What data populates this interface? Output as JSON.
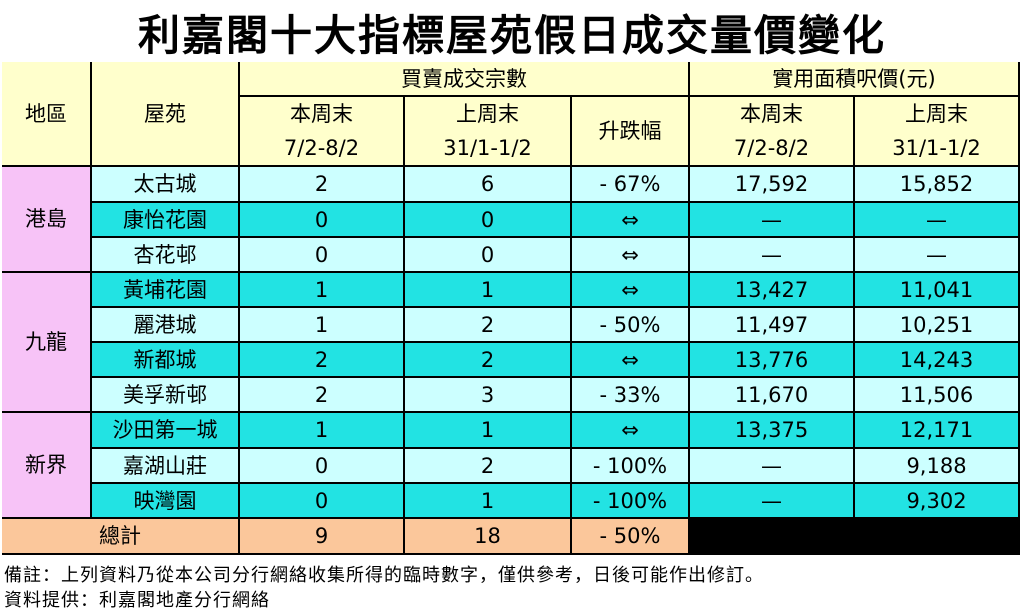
{
  "title": "利嘉閣十大指標屋苑假日成交量價變化",
  "table": {
    "header": {
      "district": "地區",
      "estate": "屋苑",
      "transactions": "買賣成交宗數",
      "price": "實用面積呎價(元)",
      "columns": [
        [
          "本周末",
          "7/2-8/2"
        ],
        [
          "上周末",
          "31/1-1/2"
        ],
        [
          "升跌幅"
        ],
        [
          "本周末",
          "7/2-8/2"
        ],
        [
          "上周末",
          "31/1-1/2"
        ]
      ]
    },
    "groups": [
      {
        "district": "港島",
        "rows": [
          [
            "太古城",
            "2",
            "6",
            "- 67%",
            "17,592",
            "15,852"
          ],
          [
            "康怡花園",
            "0",
            "0",
            "⇔",
            "—",
            "—"
          ],
          [
            "杏花邨",
            "0",
            "0",
            "⇔",
            "—",
            "—"
          ]
        ]
      },
      {
        "district": "九龍",
        "rows": [
          [
            "黃埔花園",
            "1",
            "1",
            "⇔",
            "13,427",
            "11,041"
          ],
          [
            "麗港城",
            "1",
            "2",
            "- 50%",
            "11,497",
            "10,251"
          ],
          [
            "新都城",
            "2",
            "2",
            "⇔",
            "13,776",
            "14,243"
          ],
          [
            "美孚新邨",
            "2",
            "3",
            "- 33%",
            "11,670",
            "11,506"
          ]
        ]
      },
      {
        "district": "新界",
        "rows": [
          [
            "沙田第一城",
            "1",
            "1",
            "⇔",
            "13,375",
            "12,171"
          ],
          [
            "嘉湖山莊",
            "0",
            "2",
            "- 100%",
            "—",
            "9,188"
          ],
          [
            "映灣園",
            "0",
            "1",
            "- 100%",
            "—",
            "9,302"
          ]
        ]
      }
    ],
    "total": [
      "總計",
      "9",
      "18",
      "- 50%"
    ]
  },
  "notes": [
    "備註：上列資料乃從本公司分行網絡收集所得的臨時數字，僅供參考，日後可能作出修訂。",
    "資料提供：利嘉閣地產分行網絡"
  ]
}
